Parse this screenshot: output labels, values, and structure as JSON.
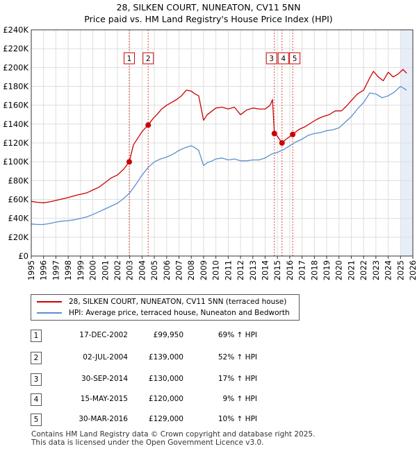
{
  "title_line1": "28, SILKEN COURT, NUNEATON, CV11 5NN",
  "title_line2": "Price paid vs. HM Land Registry's House Price Index (HPI)",
  "colors": {
    "property": "#cc0000",
    "hpi": "#5a8fcc",
    "marker_line": "#dd4444",
    "grid": "#dddddd",
    "shade": "#e8eef8"
  },
  "legend": {
    "property": "28, SILKEN COURT, NUNEATON, CV11 5NN (terraced house)",
    "hpi": "HPI: Average price, terraced house, Nuneaton and Bedworth"
  },
  "transactions": [
    {
      "num": "1",
      "date": "17-DEC-2002",
      "price": "£99,950",
      "hpi": "69% ↑ HPI"
    },
    {
      "num": "2",
      "date": "02-JUL-2004",
      "price": "£139,000",
      "hpi": "52% ↑ HPI"
    },
    {
      "num": "3",
      "date": "30-SEP-2014",
      "price": "£130,000",
      "hpi": "17% ↑ HPI"
    },
    {
      "num": "4",
      "date": "15-MAY-2015",
      "price": "£120,000",
      "hpi": "9% ↑ HPI"
    },
    {
      "num": "5",
      "date": "30-MAR-2016",
      "price": "£129,000",
      "hpi": "10% ↑ HPI"
    }
  ],
  "footer": {
    "line1": "Contains HM Land Registry data © Crown copyright and database right 2025.",
    "line2": "This data is licensed under the Open Government Licence v3.0."
  },
  "chart_data": {
    "type": "line",
    "title": "28, SILKEN COURT, NUNEATON, CV11 5NN — Price paid vs. HM Land Registry's House Price Index (HPI)",
    "xlim": [
      1995,
      2026
    ],
    "ylim": [
      0,
      240000
    ],
    "yticks": [
      0,
      20000,
      40000,
      60000,
      80000,
      100000,
      120000,
      140000,
      160000,
      180000,
      200000,
      220000,
      240000
    ],
    "ytick_labels": [
      "£0",
      "£20K",
      "£40K",
      "£60K",
      "£80K",
      "£100K",
      "£120K",
      "£140K",
      "£160K",
      "£180K",
      "£200K",
      "£220K",
      "£240K"
    ],
    "xticks": [
      1995,
      1996,
      1997,
      1998,
      1999,
      2000,
      2001,
      2002,
      2003,
      2004,
      2005,
      2006,
      2007,
      2008,
      2009,
      2010,
      2011,
      2012,
      2013,
      2014,
      2015,
      2016,
      2017,
      2018,
      2019,
      2020,
      2021,
      2022,
      2023,
      2024,
      2025,
      2026
    ],
    "shaded_future_from": 2025.0,
    "sale_markers": [
      {
        "label": "1",
        "x": 2002.96,
        "y": 99950
      },
      {
        "label": "2",
        "x": 2004.5,
        "y": 139000
      },
      {
        "label": "3",
        "x": 2014.75,
        "y": 130000
      },
      {
        "label": "4",
        "x": 2015.37,
        "y": 120000
      },
      {
        "label": "5",
        "x": 2016.24,
        "y": 129000
      }
    ],
    "series": [
      {
        "name": "28, SILKEN COURT, NUNEATON, CV11 5NN (terraced house)",
        "x": [
          1995.0,
          1995.5,
          1996.0,
          1996.5,
          1997.0,
          1997.5,
          1998.0,
          1998.5,
          1999.0,
          1999.5,
          2000.0,
          2000.5,
          2001.0,
          2001.5,
          2002.0,
          2002.5,
          2002.96,
          2003.3,
          2003.7,
          2004.0,
          2004.5,
          2004.9,
          2005.2,
          2005.6,
          2006.0,
          2006.4,
          2006.8,
          2007.2,
          2007.6,
          2008.0,
          2008.3,
          2008.6,
          2009.0,
          2009.3,
          2009.7,
          2010.0,
          2010.5,
          2011.0,
          2011.5,
          2012.0,
          2012.5,
          2013.0,
          2013.5,
          2014.0,
          2014.4,
          2014.6,
          2014.75,
          2015.0,
          2015.37,
          2015.7,
          2016.24,
          2016.7,
          2017.2,
          2017.7,
          2018.2,
          2018.7,
          2019.2,
          2019.7,
          2020.2,
          2020.6,
          2021.0,
          2021.5,
          2022.0,
          2022.5,
          2022.8,
          2023.2,
          2023.6,
          2024.0,
          2024.4,
          2024.8,
          2025.2,
          2025.5
        ],
        "y": [
          58000,
          57000,
          56500,
          57500,
          59000,
          60500,
          62000,
          64000,
          65500,
          67000,
          70000,
          73000,
          78000,
          83000,
          86000,
          92000,
          99950,
          118000,
          126000,
          132000,
          139000,
          146000,
          150000,
          156000,
          160000,
          163000,
          166000,
          170000,
          176000,
          175000,
          172000,
          170000,
          144000,
          150000,
          154000,
          157000,
          158000,
          156000,
          158000,
          150000,
          155000,
          157000,
          156000,
          156000,
          160000,
          166000,
          130000,
          127000,
          120000,
          124000,
          129000,
          134000,
          137000,
          141000,
          145000,
          148000,
          150000,
          154000,
          154000,
          159000,
          165000,
          172000,
          176000,
          189000,
          196000,
          190000,
          186000,
          195000,
          190000,
          193000,
          198000,
          194000
        ]
      },
      {
        "name": "HPI: Average price, terraced house, Nuneaton and Bedworth",
        "x": [
          1995.0,
          1995.5,
          1996.0,
          1996.5,
          1997.0,
          1997.5,
          1998.0,
          1998.5,
          1999.0,
          1999.5,
          2000.0,
          2000.5,
          2001.0,
          2001.5,
          2002.0,
          2002.5,
          2003.0,
          2003.5,
          2004.0,
          2004.5,
          2005.0,
          2005.5,
          2006.0,
          2006.5,
          2007.0,
          2007.5,
          2008.0,
          2008.3,
          2008.6,
          2009.0,
          2009.3,
          2009.7,
          2010.0,
          2010.5,
          2011.0,
          2011.5,
          2012.0,
          2012.5,
          2013.0,
          2013.5,
          2014.0,
          2014.5,
          2015.0,
          2015.5,
          2016.0,
          2016.5,
          2017.0,
          2017.5,
          2018.0,
          2018.5,
          2019.0,
          2019.5,
          2020.0,
          2020.5,
          2021.0,
          2021.5,
          2022.0,
          2022.5,
          2023.0,
          2023.5,
          2024.0,
          2024.5,
          2025.0,
          2025.5
        ],
        "y": [
          34000,
          33500,
          33500,
          34500,
          36000,
          37000,
          37500,
          38500,
          40000,
          41500,
          44000,
          47000,
          50000,
          53000,
          56000,
          61000,
          67000,
          76000,
          86000,
          94000,
          100000,
          103000,
          105000,
          108000,
          112000,
          115000,
          117000,
          115000,
          112000,
          96000,
          99000,
          101000,
          103000,
          104000,
          102000,
          103000,
          101000,
          101000,
          102000,
          102000,
          104000,
          108000,
          110000,
          113000,
          117000,
          121000,
          124000,
          128000,
          130000,
          131000,
          133000,
          134000,
          136000,
          142000,
          148000,
          156000,
          163000,
          173000,
          172000,
          168000,
          170000,
          174000,
          180000,
          176000
        ]
      }
    ]
  }
}
